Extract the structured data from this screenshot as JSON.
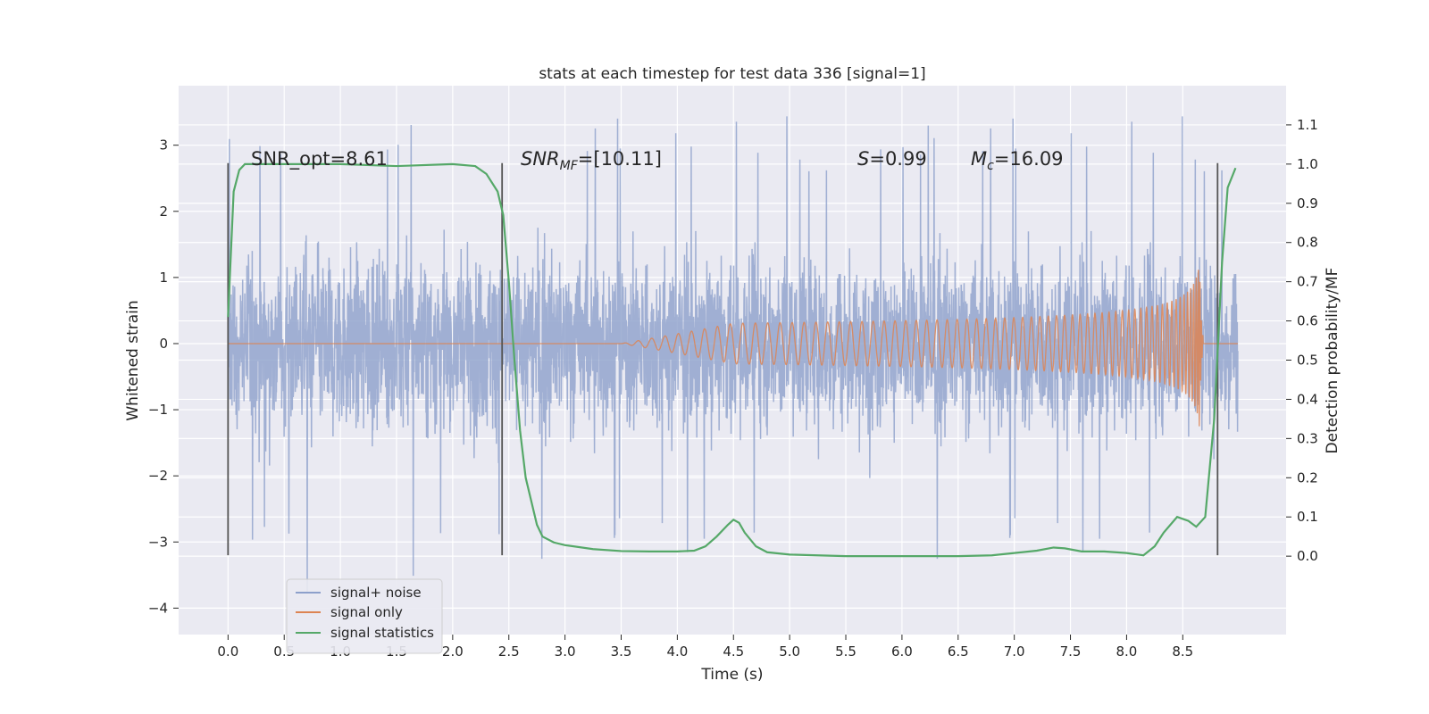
{
  "chart_data": {
    "type": "line",
    "title": "stats at each timestep for test data 336 [signal=1]",
    "xlabel": "Time (s)",
    "ylabel_left": "Whitened strain",
    "ylabel_right": "Detection probability/MF",
    "xlim": [
      -0.44,
      9.42
    ],
    "ylim_left": [
      -4.4,
      3.9
    ],
    "ylim_right": [
      -0.2,
      1.2
    ],
    "x_ticks": [
      "0.0",
      "0.5",
      "1.0",
      "1.5",
      "2.0",
      "2.5",
      "3.0",
      "3.5",
      "4.0",
      "4.5",
      "5.0",
      "5.5",
      "6.0",
      "6.5",
      "7.0",
      "7.5",
      "8.0",
      "8.5"
    ],
    "x_tick_values": [
      0,
      0.5,
      1,
      1.5,
      2,
      2.5,
      3,
      3.5,
      4,
      4.5,
      5,
      5.5,
      6,
      6.5,
      7,
      7.5,
      8,
      8.5
    ],
    "y_left_ticks": [
      "3",
      "2",
      "1",
      "0",
      "−1",
      "−2",
      "−3",
      "−4"
    ],
    "y_left_tick_values": [
      3,
      2,
      1,
      0,
      -1,
      -2,
      -3,
      -4
    ],
    "y_right_ticks": [
      "1.1",
      "1.0",
      "0.9",
      "0.8",
      "0.7",
      "0.6",
      "0.5",
      "0.4",
      "0.3",
      "0.2",
      "0.1",
      "0.0"
    ],
    "y_right_tick_values": [
      1.1,
      1.0,
      0.9,
      0.8,
      0.7,
      0.6,
      0.5,
      0.4,
      0.3,
      0.2,
      0.1,
      0.0
    ],
    "grid": true,
    "legend_position": "lower-left",
    "annotations": {
      "snr_opt": "SNR_opt=8.61",
      "snr_mf_sym": "SNR",
      "snr_mf_sub": "MF",
      "snr_mf_val": "=[10.11]",
      "s_sym": "S",
      "s_val": "=0.99",
      "mc_sym": "M",
      "mc_sub": "c",
      "mc_val": "=16.09"
    },
    "vertical_markers_s": [
      0.0,
      2.44,
      8.81
    ],
    "noise": {
      "name": "signal+ noise",
      "color": "#8da0cb",
      "x_range": [
        0.0,
        8.99
      ],
      "typical_band": [
        -1.5,
        1.5
      ],
      "peaks_up": [
        3.5,
        3.3,
        3.0
      ],
      "peaks_down": [
        -4.0,
        -3.3,
        -3.2
      ]
    },
    "signal_only": {
      "name": "signal only",
      "color": "#dd8452",
      "x_range": [
        0.0,
        8.99
      ],
      "chirp_start_s": 4.5,
      "merger_s": 8.65,
      "peak_amplitude": 1.3
    },
    "stat": {
      "name": "signal statistics",
      "color": "#55a868",
      "x": [
        0.0,
        0.05,
        0.1,
        0.15,
        0.25,
        0.5,
        1.0,
        1.5,
        2.0,
        2.2,
        2.3,
        2.4,
        2.45,
        2.5,
        2.55,
        2.6,
        2.65,
        2.7,
        2.75,
        2.8,
        2.9,
        3.0,
        3.25,
        3.5,
        3.75,
        4.0,
        4.15,
        4.25,
        4.35,
        4.45,
        4.5,
        4.55,
        4.6,
        4.7,
        4.8,
        5.0,
        5.25,
        5.5,
        6.0,
        6.5,
        6.8,
        7.0,
        7.2,
        7.35,
        7.45,
        7.6,
        7.8,
        8.0,
        8.15,
        8.25,
        8.33,
        8.45,
        8.55,
        8.62,
        8.7,
        8.78,
        8.85,
        8.9,
        8.97
      ],
      "y": [
        0.61,
        0.93,
        0.985,
        1.0,
        1.0,
        1.0,
        1.0,
        0.995,
        1.0,
        0.995,
        0.975,
        0.93,
        0.87,
        0.7,
        0.5,
        0.32,
        0.2,
        0.14,
        0.08,
        0.05,
        0.035,
        0.028,
        0.018,
        0.013,
        0.012,
        0.012,
        0.014,
        0.025,
        0.05,
        0.08,
        0.093,
        0.085,
        0.06,
        0.025,
        0.01,
        0.004,
        0.002,
        0.0,
        0.0,
        0.0,
        0.002,
        0.008,
        0.014,
        0.022,
        0.02,
        0.012,
        0.012,
        0.008,
        0.002,
        0.025,
        0.06,
        0.1,
        0.09,
        0.075,
        0.1,
        0.35,
        0.75,
        0.94,
        0.99
      ]
    }
  }
}
